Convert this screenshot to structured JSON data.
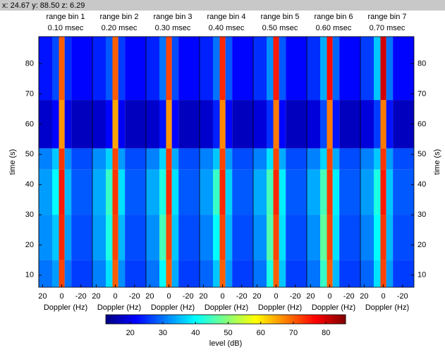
{
  "status": "x: 24.67 y: 88.50 z: 6.29",
  "chart_data": {
    "type": "heatmap",
    "colormap": "jet",
    "xlabel": "Doppler (Hz)",
    "ylabel": "time (s)",
    "xlim": [
      24,
      -32
    ],
    "xticks": [
      20,
      0,
      -20
    ],
    "ylim": [
      6,
      89
    ],
    "yticks": [
      10,
      20,
      30,
      40,
      50,
      60,
      70,
      80
    ],
    "x_edges": [
      24,
      10,
      3,
      -3,
      -10,
      -32
    ],
    "y_edges": [
      6,
      15,
      30,
      45,
      52,
      68,
      89
    ],
    "colorbar": {
      "label": "level (dB)",
      "lim": [
        12.5,
        86
      ],
      "ticks": [
        20,
        30,
        40,
        50,
        60,
        70,
        80
      ]
    },
    "panels": [
      {
        "title": "range bin 1",
        "subtitle": "0.10 msec",
        "z": [
          [
            30,
            33,
            72,
            30,
            26
          ],
          [
            32,
            36,
            74,
            33,
            27
          ],
          [
            33,
            40,
            75,
            35,
            28
          ],
          [
            31,
            36,
            73,
            32,
            27
          ],
          [
            18,
            22,
            66,
            20,
            17
          ],
          [
            23,
            27,
            70,
            25,
            22
          ]
        ]
      },
      {
        "title": "range bin 2",
        "subtitle": "0.20 msec",
        "z": [
          [
            31,
            38,
            70,
            32,
            26
          ],
          [
            33,
            42,
            72,
            35,
            27
          ],
          [
            34,
            44,
            73,
            38,
            28
          ],
          [
            32,
            37,
            72,
            33,
            27
          ],
          [
            18,
            22,
            65,
            21,
            17
          ],
          [
            24,
            28,
            70,
            26,
            22
          ]
        ]
      },
      {
        "title": "range bin 3",
        "subtitle": "0.30 msec",
        "z": [
          [
            30,
            40,
            70,
            34,
            26
          ],
          [
            32,
            45,
            72,
            36,
            27
          ],
          [
            34,
            42,
            74,
            38,
            28
          ],
          [
            31,
            37,
            73,
            34,
            27
          ],
          [
            18,
            23,
            66,
            22,
            17
          ],
          [
            24,
            30,
            72,
            27,
            22
          ]
        ]
      },
      {
        "title": "range bin 4",
        "subtitle": "0.40 msec",
        "z": [
          [
            29,
            36,
            70,
            33,
            26
          ],
          [
            31,
            40,
            72,
            35,
            27
          ],
          [
            33,
            44,
            74,
            37,
            28
          ],
          [
            31,
            36,
            72,
            33,
            27
          ],
          [
            18,
            24,
            67,
            22,
            17
          ],
          [
            24,
            30,
            74,
            28,
            22
          ]
        ]
      },
      {
        "title": "range bin 5",
        "subtitle": "0.50 msec",
        "z": [
          [
            30,
            42,
            70,
            36,
            26
          ],
          [
            32,
            46,
            72,
            38,
            27
          ],
          [
            34,
            45,
            74,
            39,
            28
          ],
          [
            31,
            38,
            72,
            34,
            27
          ],
          [
            19,
            25,
            68,
            22,
            17
          ],
          [
            25,
            32,
            75,
            28,
            22
          ]
        ]
      },
      {
        "title": "range bin 6",
        "subtitle": "0.60 msec",
        "z": [
          [
            30,
            44,
            70,
            35,
            26
          ],
          [
            32,
            47,
            72,
            38,
            27
          ],
          [
            34,
            45,
            73,
            39,
            28
          ],
          [
            31,
            37,
            72,
            34,
            27
          ],
          [
            19,
            27,
            68,
            23,
            17
          ],
          [
            25,
            34,
            76,
            29,
            22
          ]
        ]
      },
      {
        "title": "range bin 7",
        "subtitle": "0.70 msec",
        "z": [
          [
            29,
            38,
            72,
            33,
            26
          ],
          [
            31,
            40,
            73,
            35,
            27
          ],
          [
            33,
            42,
            75,
            36,
            28
          ],
          [
            31,
            36,
            73,
            33,
            27
          ],
          [
            19,
            26,
            68,
            23,
            17
          ],
          [
            26,
            36,
            80,
            30,
            22
          ]
        ]
      }
    ]
  }
}
